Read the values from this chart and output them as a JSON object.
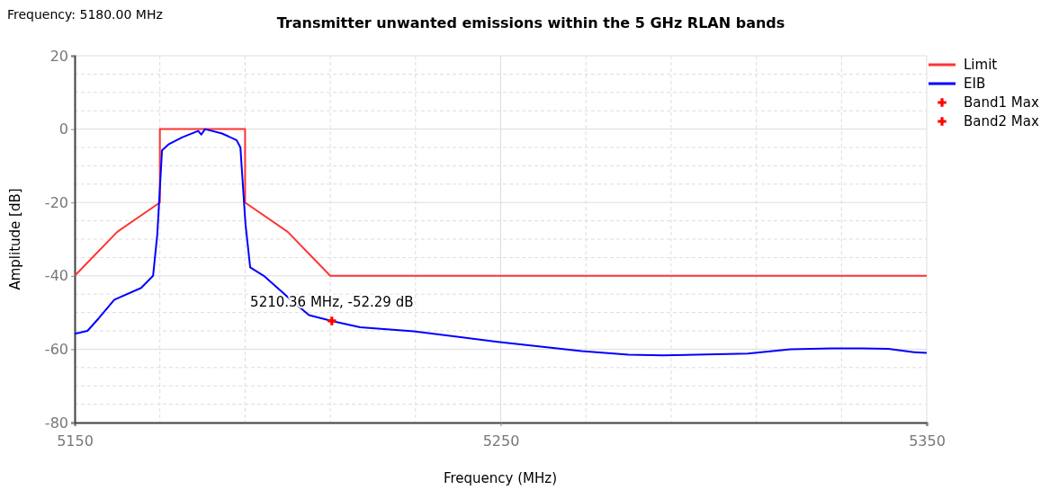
{
  "chart_data": {
    "type": "line",
    "title": "Transmitter unwanted emissions within the 5 GHz RLAN bands",
    "xlabel": "Frequency (MHz)",
    "ylabel": "Amplitude [dB]",
    "annotations": [
      "Frequency: 5180.00 MHz",
      {
        "text": "5210.36 MHz, -52.29 dB",
        "x": 5210.36,
        "y": -52.29
      }
    ],
    "xlim": [
      5150,
      5350
    ],
    "xticks": [
      5150,
      {
        "value": 5170,
        "label": null
      },
      {
        "value": 5190,
        "label": null
      },
      {
        "value": 5210,
        "label": null
      },
      {
        "value": 5230,
        "label": null
      },
      5250,
      {
        "value": 5270,
        "label": null
      },
      {
        "value": 5290,
        "label": null
      },
      {
        "value": 5310,
        "label": null
      },
      {
        "value": 5330,
        "label": null
      },
      5350
    ],
    "ylim": [
      -80,
      20
    ],
    "yticks": [
      -80,
      {
        "value": -75,
        "label": null
      },
      {
        "value": -70,
        "label": null
      },
      {
        "value": -65,
        "label": null
      },
      -60,
      {
        "value": -55,
        "label": null
      },
      {
        "value": -50,
        "label": null
      },
      {
        "value": -45,
        "label": null
      },
      -40,
      {
        "value": -35,
        "label": null
      },
      {
        "value": -30,
        "label": null
      },
      {
        "value": -25,
        "label": null
      },
      -20,
      {
        "value": -15,
        "label": null
      },
      {
        "value": -10,
        "label": null
      },
      {
        "value": -5,
        "label": null
      },
      0,
      {
        "value": 5,
        "label": null
      },
      {
        "value": 10,
        "label": null
      },
      {
        "value": 15,
        "label": null
      },
      20
    ],
    "grid": true,
    "legend": "top right",
    "line_style": "solid",
    "series": [
      {
        "name": "Limit",
        "color": "#ff3333",
        "x": [
          5150,
          5160,
          5170,
          5170,
          5190,
          5190,
          5200,
          5210,
          5350
        ],
        "values": [
          -40,
          -28,
          -20,
          0,
          0,
          -20,
          -28,
          -40,
          -40
        ]
      },
      {
        "name": "EIB",
        "color": "#0000ff",
        "x": [
          5150,
          5153,
          5155.7,
          5159.3,
          5165.6,
          5168.4,
          5169.4,
          5170.5,
          5172,
          5175.3,
          5179,
          5179.7,
          5180.6,
          5184.6,
          5188,
          5188.9,
          5190.1,
          5191.2,
          5194.4,
          5200.7,
          5205,
          5210.36,
          5217,
          5229.6,
          5249.3,
          5269,
          5280,
          5288,
          5308,
          5318,
          5327.6,
          5335,
          5341,
          5347,
          5350
        ],
        "values": [
          -55.8,
          -55,
          -51.5,
          -46.5,
          -43.3,
          -40,
          -28.6,
          -5.8,
          -4.2,
          -2.2,
          -0.5,
          -1.5,
          0,
          -1.2,
          -3,
          -5,
          -26,
          -37.7,
          -40,
          -46.5,
          -50.7,
          -52.29,
          -54,
          -55.1,
          -58,
          -60.5,
          -61.5,
          -61.7,
          -61.2,
          -60,
          -59.8,
          -59.8,
          -59.9,
          -60.8,
          -61
        ]
      },
      {
        "name": "Band1 Max",
        "type": "scatter",
        "marker": "cross",
        "color": "#ff0000",
        "x": [
          5210.36
        ],
        "values": [
          -52.29
        ]
      },
      {
        "name": "Band2 Max",
        "type": "scatter",
        "marker": "cross",
        "color": "#ff0000"
      }
    ]
  }
}
